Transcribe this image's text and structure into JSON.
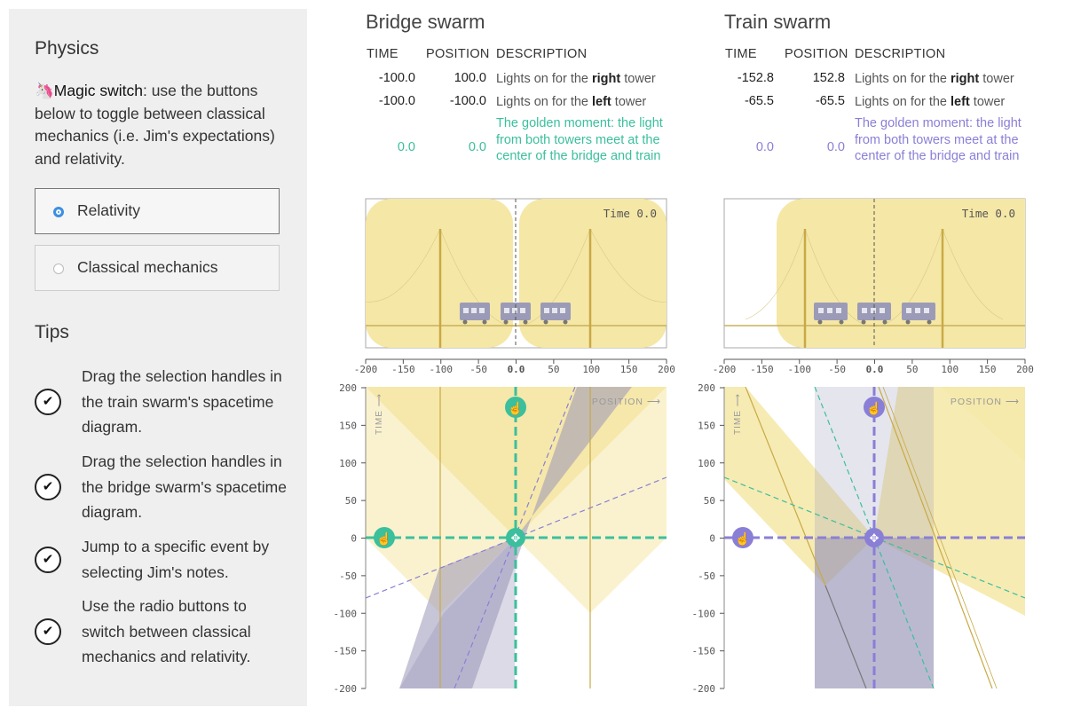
{
  "sidebar": {
    "physics_heading": "Physics",
    "intro_emoji": "🦄",
    "intro_bold": "Magic switch",
    "intro_text": ": use the buttons below to toggle between classical mechanics (i.e. Jim's expectations) and relativity.",
    "radio_options": [
      {
        "label": "Relativity",
        "selected": true
      },
      {
        "label": "Classical mechanics",
        "selected": false
      }
    ],
    "tips_heading": "Tips",
    "tips": [
      "Drag the selection handles in the train swarm's spacetime diagram.",
      "Drag the selection handles in the bridge swarm's spacetime diagram.",
      "Jump to a specific event by selecting Jim's notes.",
      "Use the radio buttons to switch between classical mechanics and relativity."
    ]
  },
  "columns": {
    "time": "TIME",
    "position": "POSITION",
    "description": "DESCRIPTION"
  },
  "bridge": {
    "title": "Bridge swarm",
    "accent": "#3bbf9d",
    "notes": [
      {
        "time": "-100.0",
        "position": "100.0",
        "pre": "Lights on for the ",
        "bold": "right",
        "post": " tower"
      },
      {
        "time": "-100.0",
        "position": "-100.0",
        "pre": "Lights on for the ",
        "bold": "left",
        "post": " tower"
      },
      {
        "time": "0.0",
        "position": "0.0",
        "pre": "The golden moment: the light from both towers meet at the center of the bridge and train",
        "bold": "",
        "post": ""
      }
    ],
    "time_label": "Time 0.0",
    "position_axis_label": "POSITION ⟶",
    "time_axis_label": "TIME ⟶"
  },
  "train": {
    "title": "Train swarm",
    "accent": "#8a7fd6",
    "notes": [
      {
        "time": "-152.8",
        "position": "152.8",
        "pre": "Lights on for the ",
        "bold": "right",
        "post": " tower"
      },
      {
        "time": "-65.5",
        "position": "-65.5",
        "pre": "Lights on for the ",
        "bold": "left",
        "post": " tower"
      },
      {
        "time": "0.0",
        "position": "0.0",
        "pre": "The golden moment: the light from both towers meet at the center of the bridge and train",
        "bold": "",
        "post": ""
      }
    ],
    "time_label": "Time 0.0",
    "position_axis_label": "POSITION ⟶",
    "time_axis_label": "TIME ⟶"
  },
  "axis": {
    "x_ticks": [
      "-200",
      "-150",
      "-100",
      "-50",
      "0.0",
      "50",
      "100",
      "150",
      "200"
    ],
    "y_ticks": [
      "200",
      "150",
      "100",
      "50",
      "0",
      "-50",
      "-100",
      "-150",
      "-200"
    ]
  },
  "colors": {
    "light_cone": "#f5e7a6",
    "train_band": "#9996b8",
    "bridge_gold": "#d8bf5e"
  }
}
